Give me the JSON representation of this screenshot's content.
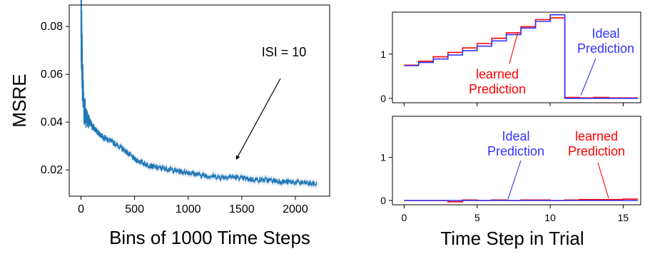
{
  "colors": {
    "msre_line": "#1f77b4",
    "msre_band": "#aec7e8",
    "learned": "#ff0000",
    "ideal": "#3333ff",
    "annotation_arrow": "#000000"
  },
  "chart_data": [
    {
      "type": "line",
      "xlabel": "Bins of 1000 Time Steps",
      "ylabel": "MSRE",
      "xlim": [
        -110,
        2320
      ],
      "ylim": [
        0.009,
        0.089
      ],
      "xticks": [
        0,
        500,
        1000,
        1500,
        2000
      ],
      "yticks": [
        0.02,
        0.04,
        0.06,
        0.08
      ],
      "ytick_labels": [
        "0.02",
        "0.04",
        "0.06",
        "0.08"
      ],
      "grid": false,
      "annotation": {
        "text": "ISI = 10",
        "point": [
          1450,
          0.0245
        ]
      },
      "series": [
        {
          "x": [
            0,
            5,
            10,
            15,
            20,
            25,
            30,
            40,
            50,
            60,
            75,
            100,
            150,
            200,
            300,
            400,
            500,
            600,
            700,
            800,
            900,
            1000,
            1100,
            1200,
            1300,
            1400,
            1500,
            1600,
            1700,
            1800,
            1900,
            2000,
            2100,
            2200
          ],
          "values": [
            0.084,
            0.078,
            0.067,
            0.058,
            0.052,
            0.048,
            0.046,
            0.044,
            0.0425,
            0.0415,
            0.04,
            0.0385,
            0.036,
            0.034,
            0.0315,
            0.0285,
            0.0245,
            0.0225,
            0.021,
            0.0205,
            0.0195,
            0.019,
            0.018,
            0.0175,
            0.017,
            0.0172,
            0.0165,
            0.016,
            0.0158,
            0.0155,
            0.015,
            0.0148,
            0.0145,
            0.014
          ]
        }
      ]
    },
    {
      "type": "line",
      "xlim": [
        -0.8,
        16.2
      ],
      "ylim": [
        -0.1,
        1.95
      ],
      "xticks": [
        0,
        5,
        10,
        15
      ],
      "yticks": [
        0,
        1
      ],
      "grid": false,
      "annotations": [
        {
          "text": "learned\nPrediction",
          "series": "learned",
          "point": [
            7.8,
            1.5
          ]
        },
        {
          "text": "Ideal\nPrediction",
          "series": "ideal",
          "point": [
            12.1,
            0.07
          ]
        }
      ],
      "series": [
        {
          "color_key": "learned",
          "step_edges": [
            0,
            1,
            2,
            3,
            4,
            5,
            6,
            7,
            8,
            9,
            10,
            11,
            12,
            13,
            14,
            15,
            16
          ],
          "values": [
            0.75,
            0.84,
            0.94,
            1.04,
            1.14,
            1.24,
            1.36,
            1.48,
            1.62,
            1.78,
            1.82,
            0.02,
            0.01,
            0.02,
            0.01,
            0.01
          ]
        },
        {
          "color_key": "ideal",
          "step_edges": [
            0,
            1,
            2,
            3,
            4,
            5,
            6,
            7,
            8,
            9,
            10,
            11,
            12,
            13,
            14,
            15,
            16
          ],
          "values": [
            0.74,
            0.81,
            0.89,
            0.98,
            1.08,
            1.18,
            1.3,
            1.44,
            1.59,
            1.74,
            1.89,
            0.0,
            0.0,
            0.0,
            0.0,
            0.0
          ]
        }
      ]
    },
    {
      "type": "line",
      "xlabel": "Time Step in Trial",
      "xlim": [
        -0.8,
        16.2
      ],
      "ylim": [
        -0.1,
        1.95
      ],
      "xticks": [
        0,
        5,
        10,
        15
      ],
      "yticks": [
        0,
        1
      ],
      "grid": false,
      "annotations": [
        {
          "text": "Ideal\nPrediction",
          "series": "ideal",
          "point": [
            7.1,
            0.02
          ]
        },
        {
          "text": "learned\nPrediction",
          "series": "learned",
          "point": [
            14.0,
            0.05
          ]
        }
      ],
      "series": [
        {
          "color_key": "learned",
          "step_edges": [
            0,
            1,
            2,
            3,
            4,
            5,
            6,
            7,
            8,
            9,
            10,
            11,
            12,
            13,
            14,
            15,
            16
          ],
          "values": [
            0.0,
            0.0,
            0.0,
            -0.03,
            0.01,
            0.0,
            0.01,
            0.0,
            0.01,
            0.01,
            0.0,
            0.01,
            0.02,
            0.02,
            0.02,
            0.03
          ]
        },
        {
          "color_key": "ideal",
          "step_edges": [
            0,
            1,
            2,
            3,
            4,
            5,
            6,
            7,
            8,
            9,
            10,
            11,
            12,
            13,
            14,
            15,
            16
          ],
          "values": [
            0.0,
            0.0,
            0.0,
            0.0,
            0.0,
            0.0,
            0.0,
            0.0,
            0.0,
            0.0,
            0.0,
            0.0,
            0.0,
            0.0,
            0.0,
            0.0
          ]
        }
      ]
    }
  ]
}
